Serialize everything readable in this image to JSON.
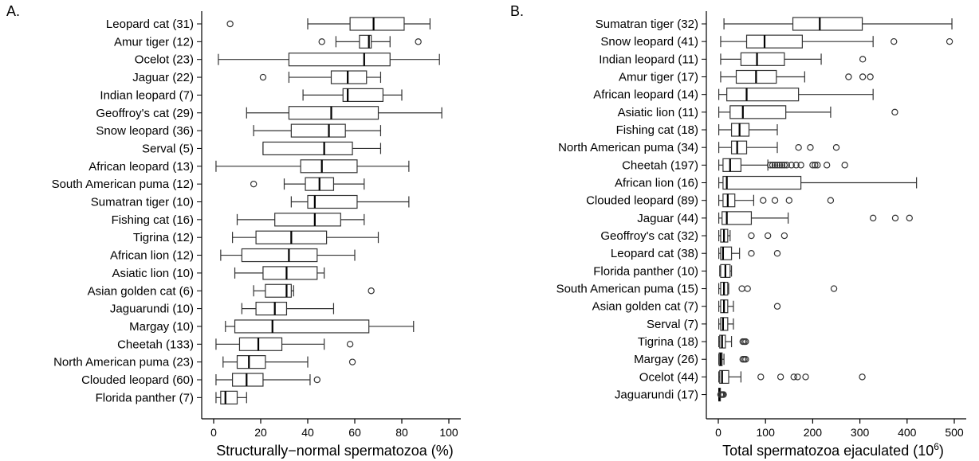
{
  "chart_data": [
    {
      "type": "box",
      "panel_label": "A.",
      "xlabel": "Structurally−normal spermatozoa (%)",
      "xlim": [
        0,
        100
      ],
      "xticks": [
        0,
        20,
        40,
        60,
        80,
        100
      ],
      "categories": [
        {
          "label": "Leopard cat (31)",
          "min": 40,
          "q1": 58,
          "median": 68,
          "q3": 81,
          "max": 92,
          "outliers": [
            7
          ]
        },
        {
          "label": "Amur tiger (12)",
          "min": 52,
          "q1": 62,
          "median": 66,
          "q3": 67,
          "max": 75,
          "outliers": [
            46,
            87
          ]
        },
        {
          "label": "Ocelot (23)",
          "min": 2,
          "q1": 32,
          "median": 64,
          "q3": 75,
          "max": 96,
          "outliers": []
        },
        {
          "label": "Jaguar (22)",
          "min": 32,
          "q1": 50,
          "median": 57,
          "q3": 65,
          "max": 71,
          "outliers": [
            21
          ]
        },
        {
          "label": "Indian leopard (7)",
          "min": 38,
          "q1": 55,
          "median": 57,
          "q3": 72,
          "max": 80,
          "outliers": []
        },
        {
          "label": "Geoffroy's cat (29)",
          "min": 14,
          "q1": 32,
          "median": 50,
          "q3": 70,
          "max": 97,
          "outliers": []
        },
        {
          "label": "Snow leopard (36)",
          "min": 17,
          "q1": 33,
          "median": 49,
          "q3": 56,
          "max": 71,
          "outliers": []
        },
        {
          "label": "Serval (5)",
          "min": 21,
          "q1": 21,
          "median": 47,
          "q3": 59,
          "max": 71,
          "outliers": []
        },
        {
          "label": "African leopard (13)",
          "min": 1,
          "q1": 37,
          "median": 46,
          "q3": 61,
          "max": 83,
          "outliers": []
        },
        {
          "label": "South American puma (12)",
          "min": 30,
          "q1": 39,
          "median": 45,
          "q3": 51,
          "max": 64,
          "outliers": [
            17
          ]
        },
        {
          "label": "Sumatran tiger (10)",
          "min": 33,
          "q1": 40,
          "median": 43,
          "q3": 61,
          "max": 83,
          "outliers": []
        },
        {
          "label": "Fishing cat (16)",
          "min": 10,
          "q1": 26,
          "median": 43,
          "q3": 54,
          "max": 64,
          "outliers": []
        },
        {
          "label": "Tigrina (12)",
          "min": 8,
          "q1": 18,
          "median": 33,
          "q3": 48,
          "max": 70,
          "outliers": []
        },
        {
          "label": "African lion (12)",
          "min": 3,
          "q1": 12,
          "median": 32,
          "q3": 44,
          "max": 60,
          "outliers": []
        },
        {
          "label": "Asiatic lion (10)",
          "min": 9,
          "q1": 21,
          "median": 31,
          "q3": 44,
          "max": 47,
          "outliers": []
        },
        {
          "label": "Asian golden cat (6)",
          "min": 17,
          "q1": 22,
          "median": 31,
          "q3": 33,
          "max": 34,
          "outliers": [
            67
          ]
        },
        {
          "label": "Jaguarundi (10)",
          "min": 12,
          "q1": 18,
          "median": 26,
          "q3": 31,
          "max": 51,
          "outliers": []
        },
        {
          "label": "Margay (10)",
          "min": 5,
          "q1": 9,
          "median": 25,
          "q3": 66,
          "max": 85,
          "outliers": []
        },
        {
          "label": "Cheetah (133)",
          "min": 1,
          "q1": 11,
          "median": 19,
          "q3": 29,
          "max": 47,
          "outliers": [
            58
          ]
        },
        {
          "label": "North American puma (23)",
          "min": 4,
          "q1": 10,
          "median": 15,
          "q3": 22,
          "max": 40,
          "outliers": [
            59
          ]
        },
        {
          "label": "Clouded leopard (60)",
          "min": 1,
          "q1": 8,
          "median": 14,
          "q3": 21,
          "max": 41,
          "outliers": [
            44
          ]
        },
        {
          "label": "Florida panther (7)",
          "min": 1,
          "q1": 3,
          "median": 5,
          "q3": 10,
          "max": 14,
          "outliers": []
        }
      ]
    },
    {
      "type": "box",
      "panel_label": "B.",
      "xlabel": "Total spermatozoa ejaculated (10",
      "xlabel_sup": "6",
      "xlabel_tail": ")",
      "xlim": [
        0,
        500
      ],
      "xticks": [
        0,
        100,
        200,
        300,
        400,
        500
      ],
      "categories": [
        {
          "label": "Sumatran tiger (32)",
          "min": 12,
          "q1": 158,
          "median": 215,
          "q3": 305,
          "max": 495,
          "outliers": []
        },
        {
          "label": "Snow leopard (41)",
          "min": 5,
          "q1": 60,
          "median": 98,
          "q3": 178,
          "max": 328,
          "outliers": [
            372,
            490
          ]
        },
        {
          "label": "Indian leopard (11)",
          "min": 5,
          "q1": 48,
          "median": 82,
          "q3": 140,
          "max": 218,
          "outliers": [
            306
          ]
        },
        {
          "label": "Amur tiger (17)",
          "min": 5,
          "q1": 38,
          "median": 80,
          "q3": 123,
          "max": 183,
          "outliers": [
            276,
            306,
            322
          ]
        },
        {
          "label": "African leopard (14)",
          "min": 1,
          "q1": 18,
          "median": 60,
          "q3": 170,
          "max": 328,
          "outliers": []
        },
        {
          "label": "Asiatic lion (11)",
          "min": 1,
          "q1": 25,
          "median": 52,
          "q3": 143,
          "max": 238,
          "outliers": [
            374
          ]
        },
        {
          "label": "Fishing cat (18)",
          "min": 1,
          "q1": 28,
          "median": 45,
          "q3": 65,
          "max": 125,
          "outliers": []
        },
        {
          "label": "North American puma (34)",
          "min": 1,
          "q1": 28,
          "median": 40,
          "q3": 60,
          "max": 125,
          "outliers": [
            170,
            195,
            250
          ]
        },
        {
          "label": "Cheetah (197)",
          "min": 1,
          "q1": 10,
          "median": 25,
          "q3": 48,
          "max": 105,
          "outliers": [
            110,
            115,
            120,
            125,
            130,
            135,
            140,
            145,
            155,
            165,
            175,
            200,
            205,
            210,
            230,
            268
          ]
        },
        {
          "label": "African lion (16)",
          "min": 1,
          "q1": 10,
          "median": 18,
          "q3": 175,
          "max": 420,
          "outliers": []
        },
        {
          "label": "Clouded leopard (89)",
          "min": 1,
          "q1": 10,
          "median": 20,
          "q3": 35,
          "max": 75,
          "outliers": [
            95,
            120,
            150,
            238
          ]
        },
        {
          "label": "Jaguar (44)",
          "min": 1,
          "q1": 8,
          "median": 18,
          "q3": 70,
          "max": 148,
          "outliers": [
            328,
            375,
            405
          ]
        },
        {
          "label": "Geoffroy's cat (32)",
          "min": 1,
          "q1": 5,
          "median": 12,
          "q3": 20,
          "max": 25,
          "outliers": [
            70,
            105,
            140
          ]
        },
        {
          "label": "Leopard cat (38)",
          "min": 1,
          "q1": 5,
          "median": 10,
          "q3": 28,
          "max": 45,
          "outliers": [
            70,
            125
          ]
        },
        {
          "label": "Florida panther (10)",
          "min": 3,
          "q1": 5,
          "median": 15,
          "q3": 25,
          "max": 28,
          "outliers": []
        },
        {
          "label": "South American puma (15)",
          "min": 1,
          "q1": 5,
          "median": 12,
          "q3": 20,
          "max": 22,
          "outliers": [
            50,
            62,
            245
          ]
        },
        {
          "label": "Asian golden cat (7)",
          "min": 1,
          "q1": 5,
          "median": 12,
          "q3": 20,
          "max": 32,
          "outliers": [
            125
          ]
        },
        {
          "label": "Serval (7)",
          "min": 1,
          "q1": 5,
          "median": 10,
          "q3": 20,
          "max": 32,
          "outliers": []
        },
        {
          "label": "Tigrina (18)",
          "min": 1,
          "q1": 3,
          "median": 8,
          "q3": 15,
          "max": 28,
          "outliers": [
            52,
            55,
            58
          ]
        },
        {
          "label": "Margay (26)",
          "min": 1,
          "q1": 2,
          "median": 5,
          "q3": 8,
          "max": 12,
          "outliers": [
            52,
            55,
            58
          ]
        },
        {
          "label": "Ocelot (44)",
          "min": 1,
          "q1": 3,
          "median": 8,
          "q3": 22,
          "max": 48,
          "outliers": [
            90,
            132,
            160,
            168,
            185,
            305
          ]
        },
        {
          "label": "Jaguarundi (17)",
          "min": 1,
          "q1": 1,
          "median": 2,
          "q3": 3,
          "max": 4,
          "outliers": [
            5,
            7,
            9,
            11
          ]
        }
      ]
    }
  ]
}
